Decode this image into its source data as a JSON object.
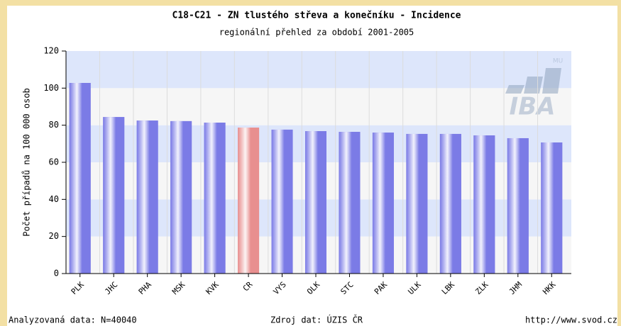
{
  "chart_data": {
    "type": "bar",
    "title": "C18-C21 - ZN tlustého střeva a konečníku - Incidence",
    "subtitle": "regionální přehled za období 2001-2005",
    "y_label": "Počet případů na 100 000 osob",
    "categories": [
      "PLK",
      "JHC",
      "PHA",
      "MSK",
      "KVK",
      "CR",
      "VYS",
      "OLK",
      "STC",
      "PAK",
      "ULK",
      "LBK",
      "ZLK",
      "JHM",
      "HKK"
    ],
    "values": [
      102.8,
      84.4,
      82.5,
      82.2,
      81.4,
      78.7,
      77.6,
      76.8,
      76.4,
      76,
      75.3,
      75.3,
      74.5,
      73,
      70.7
    ],
    "colors": [
      "#7b7be6",
      "#7b7be6",
      "#7b7be6",
      "#7b7be6",
      "#7b7be6",
      "#e88f8f",
      "#7b7be6",
      "#7b7be6",
      "#7b7be6",
      "#7b7be6",
      "#7b7be6",
      "#7b7be6",
      "#7b7be6",
      "#7b7be6",
      "#7b7be6"
    ],
    "ylim": [
      0,
      120
    ],
    "yticks": [
      0,
      20,
      40,
      60,
      80,
      100,
      120
    ],
    "band_colors": [
      "#f6f6f6",
      "#dde6fb"
    ],
    "logo": {
      "text": "IBA",
      "small": "MU"
    },
    "footer": {
      "left": "Analyzovaná data: N=40040",
      "center": "Zdroj dat: ÚZIS ČR",
      "right": "http://www.svod.cz"
    }
  }
}
